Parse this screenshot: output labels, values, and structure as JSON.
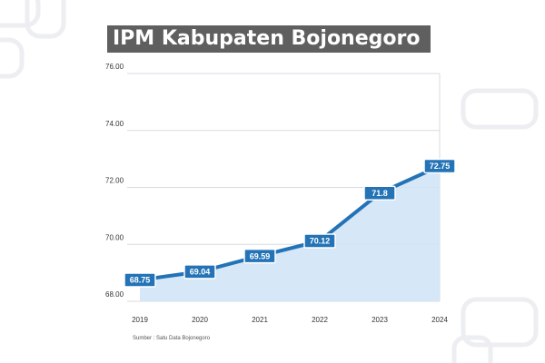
{
  "title": "IPM Kabupaten Bojonegoro",
  "source": "Sumber : Satu Data Bojonegoro",
  "colors": {
    "line": "#2473b6",
    "area": "#d2e4f6",
    "grid": "#d7dbe0",
    "title_bg": "#5f5f5f",
    "label_bg": "#2473b6"
  },
  "chart_data": {
    "type": "area",
    "title": "IPM Kabupaten Bojonegoro",
    "x": [
      "2019",
      "2020",
      "2021",
      "2022",
      "2023",
      "2024"
    ],
    "series": [
      {
        "values": [
          68.75,
          69.04,
          69.59,
          70.12,
          71.8,
          72.75
        ]
      }
    ],
    "data_labels": [
      "68.75",
      "69.04",
      "69.59",
      "70.12",
      "71.8",
      "72.75"
    ],
    "ylim": [
      68,
      76
    ],
    "y_ticks": [
      "68.00",
      "70.00",
      "72.00",
      "74.00",
      "76.00"
    ],
    "y_tick_values": [
      68,
      70,
      72,
      74,
      76
    ],
    "grid": true,
    "legend": "none",
    "xlabel": "",
    "ylabel": ""
  }
}
